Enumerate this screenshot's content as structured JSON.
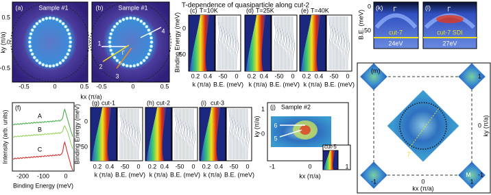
{
  "title": "T-dependence of quasiparticle along cut-2",
  "panels": {
    "a": {
      "label": "(a)",
      "sample": "Sample #1",
      "xticks": [
        "-0.5",
        "0",
        "0.5"
      ],
      "yticks": [
        "0.5",
        "0",
        "-0.5"
      ],
      "ylabel": "ky (π/a)",
      "xlabel": "kx (π/a)"
    },
    "b": {
      "label": "(b)",
      "sample": "Sample #1",
      "xticks": [
        "-0.5",
        "0",
        "0.5"
      ],
      "cuts": [
        "1",
        "2",
        "3",
        "4"
      ],
      "center": "Γ"
    },
    "c": {
      "label": "(c)",
      "condition": "T=10K"
    },
    "d": {
      "label": "(d)",
      "condition": "T=25K"
    },
    "e": {
      "label": "(e)",
      "condition": "T=40K"
    },
    "cde_axes": {
      "ylabel": "Binding Energy (meV)",
      "yticks": [
        "0",
        "50"
      ],
      "k_ticks": [
        "0.2",
        "0.4"
      ],
      "be_ticks": [
        "-50",
        "0"
      ],
      "k_label": "k (π/a)",
      "be_label": "B.E. (meV)"
    },
    "f": {
      "label": "(f)",
      "ylabel": "Intensity (arb. units)",
      "xlabel": "Binding Energy (meV)",
      "xticks": [
        "-200",
        "-100",
        "0"
      ],
      "curves": [
        "A",
        "B",
        "C"
      ]
    },
    "g": {
      "label": "(g)",
      "condition": "cut-1"
    },
    "h": {
      "label": "(h)",
      "condition": "cut-2"
    },
    "i": {
      "label": "(i)",
      "condition": "cut-3"
    },
    "ghi_axes": {
      "ylabel": "Binding Energy (meV)",
      "yticks": [
        "0",
        "50"
      ],
      "k_ticks": [
        "0.2",
        "0.4"
      ],
      "be_ticks": [
        "-50",
        "0"
      ],
      "k_label": "k (π/a)",
      "be_label": "B.E. (meV)"
    },
    "j": {
      "label": "(j)",
      "sample": "Sample #2",
      "cuts": [
        "6",
        "5"
      ],
      "inset": "cut-5",
      "xticks": [
        "-1",
        "0",
        "1"
      ],
      "yticks": [
        "1",
        "0"
      ],
      "xlabel": "kx (π/a)",
      "ylabel": "ky (π/a)"
    },
    "k": {
      "label": "(k)",
      "center": "Γ",
      "cut": "cut-7",
      "photon_energy": "24eV",
      "ylabel": "B.E. (meV)",
      "yticks": [
        "0",
        "50"
      ]
    },
    "l": {
      "label": "(l)",
      "center": "Γ",
      "cut": "cut-7 SDI",
      "photon_energy": "27eV"
    },
    "m": {
      "label": "(m)",
      "xticks": [
        "-1",
        "0",
        "1"
      ],
      "yticks": [
        "1",
        "0",
        "-1"
      ],
      "xlabel": "kx (π/a)",
      "ylabel": "ky (π/a)",
      "cut": "7",
      "corner": "M"
    }
  }
}
